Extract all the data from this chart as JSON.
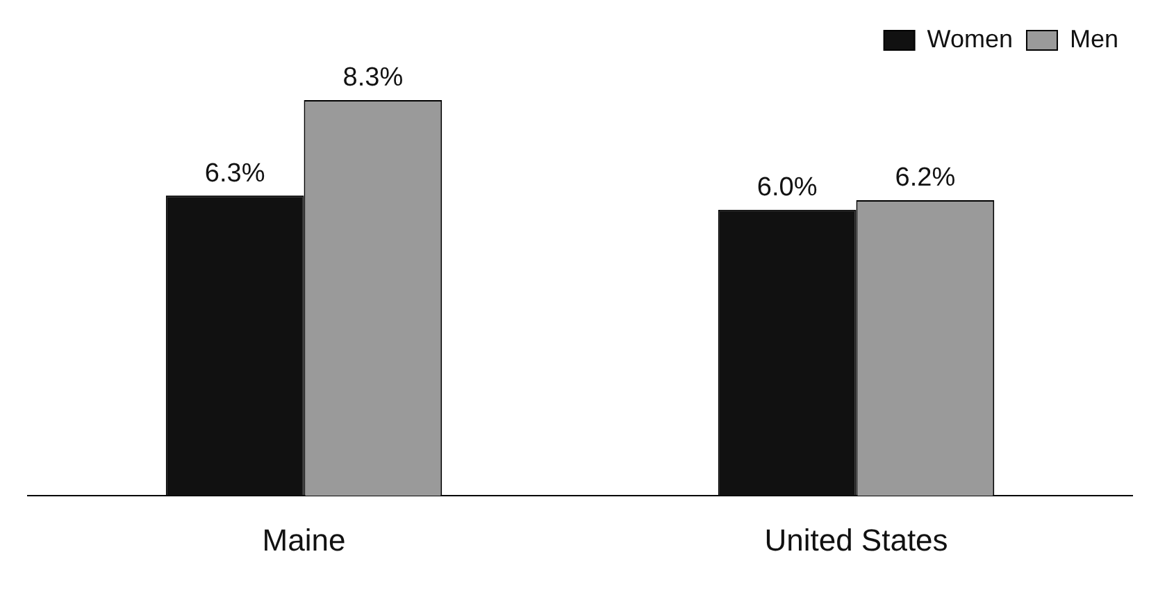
{
  "chart_data": {
    "type": "bar",
    "categories": [
      "Maine",
      "United States"
    ],
    "series": [
      {
        "name": "Women",
        "color": "#111111",
        "values": [
          6.3,
          6.0
        ],
        "value_labels": [
          "6.3%",
          "6.0%"
        ]
      },
      {
        "name": "Men",
        "color": "#9a9a9a",
        "values": [
          8.3,
          6.2
        ],
        "value_labels": [
          "8.3%",
          "6.2%"
        ]
      }
    ],
    "legend": "top right",
    "grid": false
  }
}
